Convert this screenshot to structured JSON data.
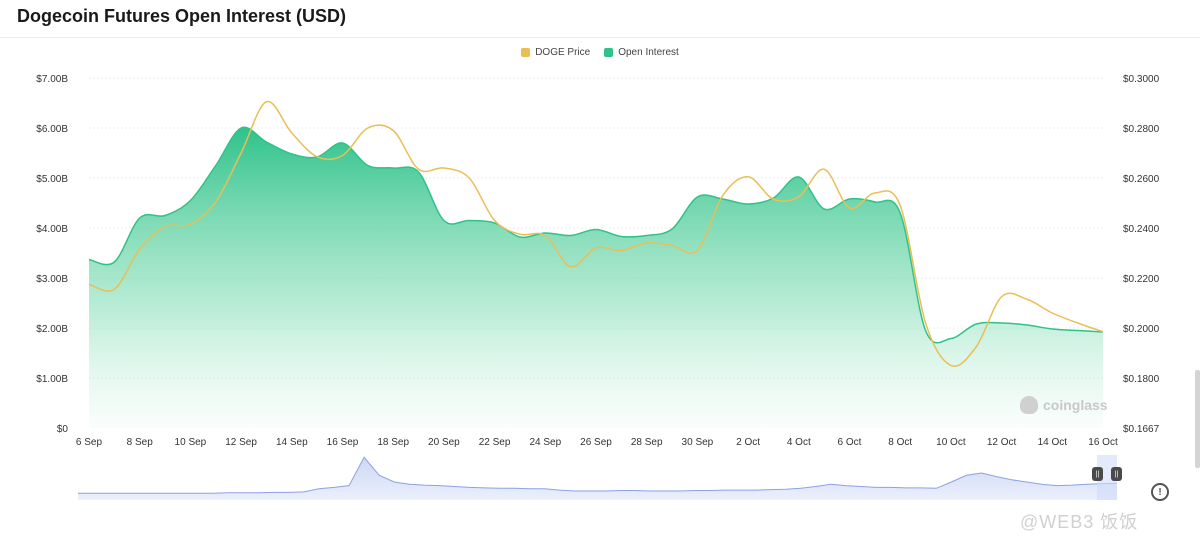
{
  "title": "Dogecoin Futures Open Interest (USD)",
  "legend": [
    {
      "label": "DOGE Price",
      "color": "#e9bf55"
    },
    {
      "label": "Open Interest",
      "color": "#2fc28a"
    }
  ],
  "watermark": "coinglass",
  "footer_watermark": "@WEB3 饭饭",
  "chart_data": {
    "type": "area",
    "x_tick_labels": [
      "6 Sep",
      "8 Sep",
      "10 Sep",
      "12 Sep",
      "14 Sep",
      "16 Sep",
      "18 Sep",
      "20 Sep",
      "22 Sep",
      "24 Sep",
      "26 Sep",
      "28 Sep",
      "30 Sep",
      "2 Oct",
      "4 Oct",
      "6 Oct",
      "8 Oct",
      "10 Oct",
      "12 Oct",
      "14 Oct",
      "16 Oct"
    ],
    "y_left_ticks": [
      "$0",
      "$1.00B",
      "$2.00B",
      "$3.00B",
      "$4.00B",
      "$5.00B",
      "$6.00B",
      "$7.00B"
    ],
    "y_left_range": [
      0,
      7.0
    ],
    "y_left_unit": "B USD",
    "y_right_ticks": [
      "$0.1667",
      "$0.1800",
      "$0.2000",
      "$0.2200",
      "$0.2400",
      "$0.2600",
      "$0.2800",
      "$0.3000"
    ],
    "y_right_tick_values": [
      0.1667,
      0.18,
      0.2,
      0.22,
      0.24,
      0.26,
      0.28,
      0.3
    ],
    "grid": true,
    "legend_position": "top-center",
    "x_days": [
      0,
      1,
      2,
      3,
      4,
      5,
      6,
      7,
      8,
      9,
      10,
      11,
      12,
      13,
      14,
      15,
      16,
      17,
      18,
      19,
      20,
      21,
      22,
      23,
      24,
      25,
      26,
      27,
      28,
      29,
      30,
      31,
      32,
      33,
      34,
      35,
      36,
      37,
      38,
      39,
      40
    ],
    "series": [
      {
        "name": "Open Interest",
        "axis": "left",
        "color": "#2fc28a",
        "values": [
          3.37,
          3.32,
          4.2,
          4.25,
          4.55,
          5.25,
          6.0,
          5.72,
          5.48,
          5.42,
          5.7,
          5.25,
          5.2,
          5.12,
          4.15,
          4.15,
          4.1,
          3.82,
          3.9,
          3.85,
          3.97,
          3.83,
          3.85,
          3.98,
          4.62,
          4.58,
          4.48,
          4.6,
          5.02,
          4.38,
          4.58,
          4.52,
          4.3,
          1.95,
          1.79,
          2.08,
          2.1,
          2.06,
          1.98,
          1.95,
          1.92
        ]
      },
      {
        "name": "DOGE Price",
        "axis": "right",
        "color": "#e9bf55",
        "values": [
          0.2175,
          0.2155,
          0.2315,
          0.2405,
          0.2415,
          0.2505,
          0.27,
          0.2905,
          0.278,
          0.2685,
          0.269,
          0.28,
          0.279,
          0.2635,
          0.264,
          0.26,
          0.243,
          0.2375,
          0.237,
          0.2245,
          0.232,
          0.231,
          0.234,
          0.233,
          0.231,
          0.253,
          0.2605,
          0.2515,
          0.2525,
          0.2635,
          0.248,
          0.254,
          0.249,
          0.202,
          0.185,
          0.1925,
          0.2125,
          0.2115,
          0.206,
          0.202,
          0.1985
        ]
      }
    ],
    "navigator": {
      "values": [
        0.15,
        0.15,
        0.15,
        0.15,
        0.15,
        0.15,
        0.15,
        0.15,
        0.15,
        0.15,
        0.16,
        0.16,
        0.16,
        0.17,
        0.17,
        0.18,
        0.25,
        0.28,
        0.32,
        0.95,
        0.55,
        0.4,
        0.35,
        0.33,
        0.32,
        0.3,
        0.28,
        0.27,
        0.26,
        0.26,
        0.25,
        0.25,
        0.22,
        0.2,
        0.2,
        0.2,
        0.21,
        0.21,
        0.2,
        0.2,
        0.2,
        0.21,
        0.21,
        0.22,
        0.22,
        0.22,
        0.23,
        0.24,
        0.26,
        0.3,
        0.35,
        0.32,
        0.3,
        0.28,
        0.28,
        0.27,
        0.27,
        0.26,
        0.4,
        0.55,
        0.6,
        0.52,
        0.45,
        0.4,
        0.35,
        0.32,
        0.33,
        0.35,
        0.36,
        0.37
      ]
    }
  }
}
